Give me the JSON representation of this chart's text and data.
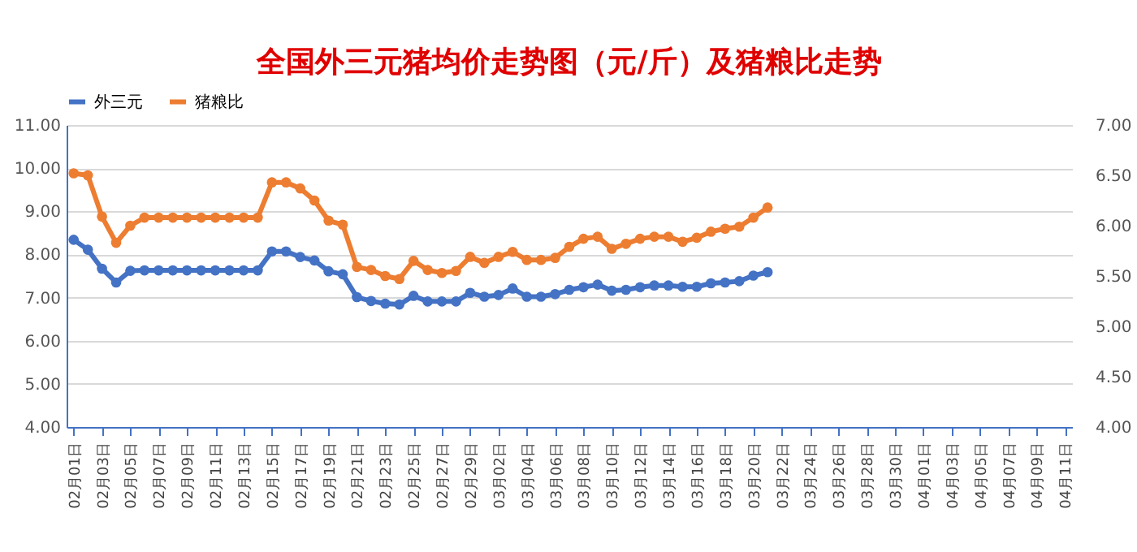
{
  "chart_data": {
    "type": "line",
    "title": "全国外三元猪均价走势图（元/斤）及猪粮比走势",
    "categories": [
      "02月01日",
      null,
      "02月03日",
      null,
      "02月05日",
      null,
      "02月07日",
      null,
      "02月09日",
      null,
      "02月11日",
      null,
      "02月13日",
      null,
      "02月15日",
      null,
      "02月17日",
      null,
      "02月19日",
      null,
      "02月21日",
      null,
      "02月23日",
      null,
      "02月25日",
      null,
      "02月27日",
      null,
      "02月29日",
      null,
      "03月02日",
      null,
      "03月04日",
      null,
      "03月06日",
      null,
      "03月08日",
      null,
      "03月10日",
      null,
      "03月12日",
      null,
      "03月14日",
      null,
      "03月16日",
      null,
      "03月18日",
      null,
      "03月20日",
      null,
      "03月22日",
      null,
      "03月24日",
      null,
      "03月26日",
      null,
      "03月28日",
      null,
      "03月30日",
      null,
      "04月01日",
      null,
      "04月03日",
      null,
      "04月05日",
      null,
      "04月07日",
      null,
      "04月09日",
      null,
      "04月11日"
    ],
    "series": [
      {
        "name": "外三元",
        "color": "#4472c4",
        "values": [
          8.34,
          8.11,
          7.67,
          7.35,
          7.62,
          7.63,
          7.63,
          7.63,
          7.63,
          7.63,
          7.63,
          7.63,
          7.63,
          7.63,
          8.07,
          8.07,
          7.94,
          7.86,
          7.61,
          7.54,
          7.01,
          6.92,
          6.86,
          6.84,
          7.04,
          6.91,
          6.91,
          6.91,
          7.11,
          7.02,
          7.06,
          7.21,
          7.02,
          7.02,
          7.08,
          7.18,
          7.24,
          7.3,
          7.16,
          7.18,
          7.24,
          7.28,
          7.28,
          7.25,
          7.25,
          7.33,
          7.35,
          7.38,
          7.51,
          7.59,
          null,
          null,
          null,
          null,
          null,
          null,
          null,
          null,
          null,
          null,
          null,
          null,
          null,
          null,
          null,
          null,
          null,
          null,
          null,
          null,
          null
        ]
      },
      {
        "name": "猪粮比",
        "color": "#ed7d31",
        "axis": "y2",
        "values": [
          6.52,
          6.5,
          6.09,
          5.83,
          6.0,
          6.08,
          6.08,
          6.08,
          6.08,
          6.08,
          6.08,
          6.08,
          6.08,
          6.08,
          6.43,
          6.43,
          6.37,
          6.25,
          6.05,
          6.01,
          5.59,
          5.56,
          5.5,
          5.47,
          5.65,
          5.56,
          5.53,
          5.55,
          5.69,
          5.63,
          5.69,
          5.74,
          5.66,
          5.66,
          5.68,
          5.79,
          5.87,
          5.89,
          5.77,
          5.82,
          5.87,
          5.89,
          5.89,
          5.84,
          5.88,
          5.94,
          5.97,
          5.99,
          6.08,
          6.18,
          null,
          null,
          null,
          null,
          null,
          null,
          null,
          null,
          null,
          null,
          null,
          null,
          null,
          null,
          null,
          null,
          null,
          null,
          null,
          null,
          null
        ]
      }
    ],
    "ylim": [
      4,
      11
    ],
    "yticks": [
      {
        "value": 4,
        "label": "4.00"
      },
      {
        "value": 5,
        "label": "5.00"
      },
      {
        "value": 6,
        "label": "6.00"
      },
      {
        "value": 7,
        "label": "7.00"
      },
      {
        "value": 8,
        "label": "8.00"
      },
      {
        "value": 9,
        "label": "9.00"
      },
      {
        "value": 10,
        "label": "10.00"
      },
      {
        "value": 11,
        "label": "11.00"
      }
    ],
    "y2lim": [
      4,
      7
    ],
    "y2ticks": [
      {
        "value": 4,
        "label": "4.00"
      },
      {
        "value": 4.5,
        "label": "4.50"
      },
      {
        "value": 5,
        "label": "5.00"
      },
      {
        "value": 5.5,
        "label": "5.50"
      },
      {
        "value": 6,
        "label": "6.00"
      },
      {
        "value": 6.5,
        "label": "6.50"
      },
      {
        "value": 7,
        "label": "7.00"
      }
    ],
    "grid": "y",
    "legend": "top",
    "marker": "circle",
    "line_style": "solid"
  }
}
